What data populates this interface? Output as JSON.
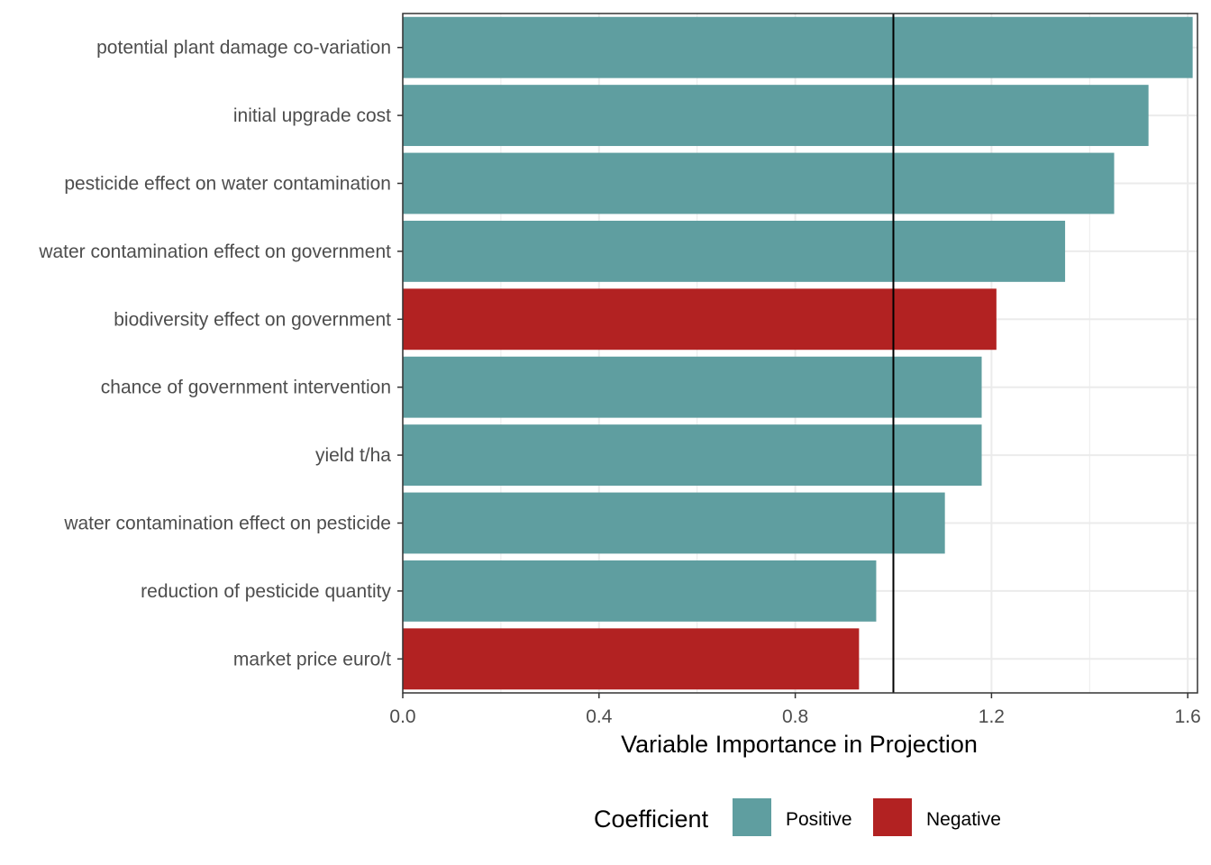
{
  "chart_data": {
    "type": "bar",
    "orientation": "horizontal",
    "categories": [
      "potential plant damage co-variation",
      "initial upgrade cost",
      "pesticide effect on water contamination",
      "water contamination effect on government",
      "biodiversity effect on government",
      "chance of government intervention",
      "yield t/ha",
      "water contamination effect on pesticide",
      "reduction of pesticide quantity",
      "market price euro/t"
    ],
    "values": [
      1.61,
      1.52,
      1.45,
      1.35,
      1.21,
      1.18,
      1.18,
      1.105,
      0.965,
      0.93
    ],
    "coefficient": [
      "Positive",
      "Positive",
      "Positive",
      "Positive",
      "Negative",
      "Positive",
      "Positive",
      "Positive",
      "Positive",
      "Negative"
    ],
    "xlabel": "Variable Importance in Projection",
    "ylabel": "",
    "xlim": [
      0,
      1.62
    ],
    "x_ticks": [
      "0.0",
      "0.4",
      "0.8",
      "1.2",
      "1.6"
    ],
    "reference_line": 1.0,
    "grid": true,
    "legend": {
      "title": "Coefficient",
      "placement": "bottom",
      "entries": [
        {
          "label": "Positive",
          "color": "#5f9ea0"
        },
        {
          "label": "Negative",
          "color": "#b22222"
        }
      ]
    },
    "colors": {
      "Positive": "#5f9ea0",
      "Negative": "#b22222"
    }
  }
}
